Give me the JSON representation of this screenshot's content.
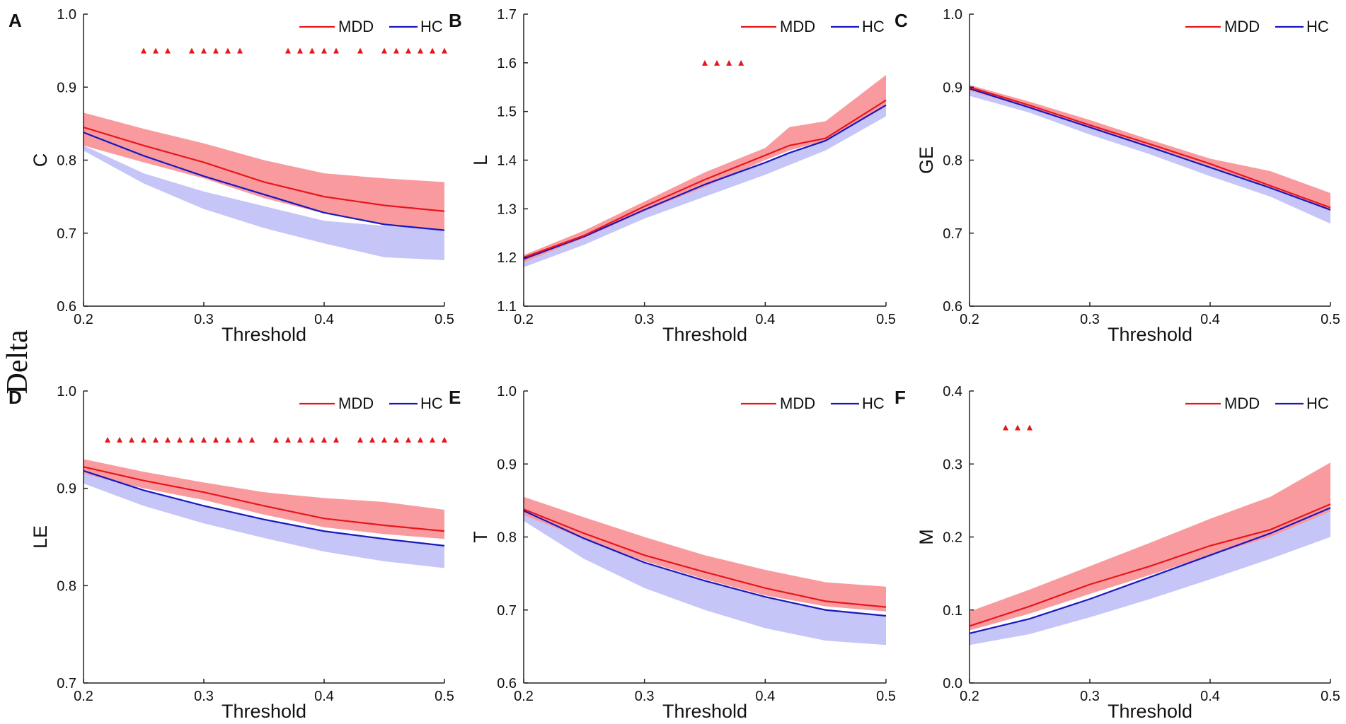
{
  "figure": {
    "side_label": "Delta",
    "colors": {
      "mdd": "#e8161c",
      "hc": "#1818c0",
      "mdd_band": "#f99b9e",
      "hc_band": "#c5c6f7",
      "axis": "#222222"
    }
  },
  "chart_data": [
    {
      "type": "line",
      "panel_letter": "A",
      "title": "",
      "xlabel": "Threshold",
      "ylabel": "C",
      "xlim": [
        0.2,
        0.5
      ],
      "ylim": [
        0.6,
        1.0
      ],
      "xticks": [
        0.2,
        0.3,
        0.4,
        0.5
      ],
      "yticks": [
        0.6,
        0.7,
        0.8,
        0.9,
        1.0
      ],
      "xtick_labels": [
        "0.2",
        "0.3",
        "0.4",
        "0.5"
      ],
      "ytick_labels": [
        "0.6",
        "0.7",
        "0.8",
        "0.9",
        "1.0"
      ],
      "legend": [
        "MDD",
        "HC"
      ],
      "legend_position": "top-right",
      "x": [
        0.2,
        0.25,
        0.3,
        0.35,
        0.4,
        0.45,
        0.5
      ],
      "series": [
        {
          "name": "MDD",
          "values": [
            0.845,
            0.82,
            0.797,
            0.77,
            0.75,
            0.738,
            0.73
          ],
          "band_upper": [
            0.865,
            0.843,
            0.823,
            0.8,
            0.782,
            0.775,
            0.77
          ],
          "band_lower": [
            0.82,
            0.797,
            0.775,
            0.748,
            0.727,
            0.712,
            0.705
          ]
        },
        {
          "name": "HC",
          "values": [
            0.838,
            0.806,
            0.778,
            0.753,
            0.728,
            0.712,
            0.704
          ],
          "band_upper": [
            0.82,
            0.782,
            0.757,
            0.737,
            0.717,
            0.71,
            0.705
          ],
          "band_lower": [
            0.813,
            0.768,
            0.733,
            0.707,
            0.686,
            0.667,
            0.663
          ]
        }
      ],
      "significance_y": 0.95,
      "significance_x": [
        0.25,
        0.26,
        0.27,
        0.29,
        0.3,
        0.31,
        0.32,
        0.33,
        0.37,
        0.38,
        0.39,
        0.4,
        0.41,
        0.43,
        0.45,
        0.46,
        0.47,
        0.48,
        0.49,
        0.5
      ]
    },
    {
      "type": "line",
      "panel_letter": "B",
      "title": "",
      "xlabel": "Threshold",
      "ylabel": "L",
      "xlim": [
        0.2,
        0.5
      ],
      "ylim": [
        1.1,
        1.7
      ],
      "xticks": [
        0.2,
        0.3,
        0.4,
        0.5
      ],
      "yticks": [
        1.1,
        1.2,
        1.3,
        1.4,
        1.5,
        1.6,
        1.7
      ],
      "xtick_labels": [
        "0.2",
        "0.3",
        "0.4",
        "0.5"
      ],
      "ytick_labels": [
        "1.1",
        "1.2",
        "1.3",
        "1.4",
        "1.5",
        "1.6",
        "1.7"
      ],
      "legend": [
        "MDD",
        "HC"
      ],
      "legend_position": "top-right",
      "x": [
        0.2,
        0.25,
        0.3,
        0.35,
        0.4,
        0.42,
        0.45,
        0.5
      ],
      "series": [
        {
          "name": "MDD",
          "values": [
            1.2,
            1.245,
            1.305,
            1.36,
            1.41,
            1.43,
            1.445,
            1.523
          ],
          "band_upper": [
            1.205,
            1.255,
            1.315,
            1.375,
            1.425,
            1.468,
            1.48,
            1.575
          ],
          "band_lower": [
            1.19,
            1.24,
            1.295,
            1.345,
            1.4,
            1.42,
            1.44,
            1.51
          ]
        },
        {
          "name": "HC",
          "values": [
            1.197,
            1.243,
            1.298,
            1.35,
            1.395,
            1.415,
            1.44,
            1.513
          ],
          "band_upper": [
            1.197,
            1.243,
            1.298,
            1.35,
            1.395,
            1.415,
            1.44,
            1.513
          ],
          "band_lower": [
            1.18,
            1.226,
            1.28,
            1.325,
            1.37,
            1.39,
            1.42,
            1.49
          ]
        }
      ],
      "significance_y": 1.6,
      "significance_x": [
        0.35,
        0.36,
        0.37,
        0.38
      ]
    },
    {
      "type": "line",
      "panel_letter": "C",
      "title": "",
      "xlabel": "Threshold",
      "ylabel": "GE",
      "xlim": [
        0.2,
        0.5
      ],
      "ylim": [
        0.6,
        1.0
      ],
      "xticks": [
        0.2,
        0.3,
        0.4,
        0.5
      ],
      "yticks": [
        0.6,
        0.7,
        0.8,
        0.9,
        1.0
      ],
      "xtick_labels": [
        "0.2",
        "0.3",
        "0.4",
        "0.5"
      ],
      "ytick_labels": [
        "0.6",
        "0.7",
        "0.8",
        "0.9",
        "1.0"
      ],
      "legend": [
        "MDD",
        "HC"
      ],
      "legend_position": "top-right",
      "x": [
        0.2,
        0.25,
        0.3,
        0.35,
        0.4,
        0.45,
        0.5
      ],
      "series": [
        {
          "name": "MDD",
          "values": [
            0.9,
            0.875,
            0.848,
            0.822,
            0.795,
            0.765,
            0.735
          ],
          "band_upper": [
            0.903,
            0.88,
            0.855,
            0.828,
            0.802,
            0.785,
            0.755
          ],
          "band_lower": [
            0.895,
            0.872,
            0.845,
            0.817,
            0.79,
            0.762,
            0.73
          ]
        },
        {
          "name": "HC",
          "values": [
            0.898,
            0.872,
            0.845,
            0.818,
            0.79,
            0.762,
            0.732
          ],
          "band_upper": [
            0.898,
            0.872,
            0.845,
            0.818,
            0.79,
            0.762,
            0.732
          ],
          "band_lower": [
            0.888,
            0.865,
            0.835,
            0.808,
            0.778,
            0.75,
            0.713
          ]
        }
      ],
      "significance_y": 0.95,
      "significance_x": []
    },
    {
      "type": "line",
      "panel_letter": "D",
      "title": "",
      "xlabel": "Threshold",
      "ylabel": "LE",
      "xlim": [
        0.2,
        0.5
      ],
      "ylim": [
        0.7,
        1.0
      ],
      "xticks": [
        0.2,
        0.3,
        0.4,
        0.5
      ],
      "yticks": [
        0.7,
        0.8,
        0.9,
        1.0
      ],
      "xtick_labels": [
        "0.2",
        "0.3",
        "0.4",
        "0.5"
      ],
      "ytick_labels": [
        "0.7",
        "0.8",
        "0.9",
        "1.0"
      ],
      "legend": [
        "MDD",
        "HC"
      ],
      "legend_position": "top-right",
      "x": [
        0.2,
        0.25,
        0.3,
        0.35,
        0.4,
        0.45,
        0.5
      ],
      "series": [
        {
          "name": "MDD",
          "values": [
            0.922,
            0.908,
            0.896,
            0.882,
            0.869,
            0.862,
            0.856
          ],
          "band_upper": [
            0.93,
            0.917,
            0.906,
            0.896,
            0.89,
            0.886,
            0.878
          ],
          "band_lower": [
            0.915,
            0.9,
            0.888,
            0.873,
            0.86,
            0.853,
            0.848
          ]
        },
        {
          "name": "HC",
          "values": [
            0.918,
            0.898,
            0.882,
            0.868,
            0.856,
            0.848,
            0.841
          ],
          "band_upper": [
            0.918,
            0.898,
            0.882,
            0.868,
            0.856,
            0.848,
            0.841
          ],
          "band_lower": [
            0.905,
            0.882,
            0.864,
            0.849,
            0.835,
            0.825,
            0.818
          ]
        }
      ],
      "significance_y": 0.95,
      "significance_x": [
        0.22,
        0.23,
        0.24,
        0.25,
        0.26,
        0.27,
        0.28,
        0.29,
        0.3,
        0.31,
        0.32,
        0.33,
        0.34,
        0.36,
        0.37,
        0.38,
        0.39,
        0.4,
        0.41,
        0.43,
        0.44,
        0.45,
        0.46,
        0.47,
        0.48,
        0.49,
        0.5
      ]
    },
    {
      "type": "line",
      "panel_letter": "E",
      "title": "",
      "xlabel": "Threshold",
      "ylabel": "T",
      "xlim": [
        0.2,
        0.5
      ],
      "ylim": [
        0.6,
        1.0
      ],
      "xticks": [
        0.2,
        0.3,
        0.4,
        0.5
      ],
      "yticks": [
        0.6,
        0.7,
        0.8,
        0.9,
        1.0
      ],
      "xtick_labels": [
        "0.2",
        "0.3",
        "0.4",
        "0.5"
      ],
      "ytick_labels": [
        "0.6",
        "0.7",
        "0.8",
        "0.9",
        "1.0"
      ],
      "legend": [
        "MDD",
        "HC"
      ],
      "legend_position": "top-right",
      "x": [
        0.2,
        0.25,
        0.3,
        0.35,
        0.4,
        0.45,
        0.5
      ],
      "series": [
        {
          "name": "MDD",
          "values": [
            0.838,
            0.805,
            0.775,
            0.752,
            0.73,
            0.712,
            0.704
          ],
          "band_upper": [
            0.855,
            0.827,
            0.8,
            0.775,
            0.755,
            0.738,
            0.732
          ],
          "band_lower": [
            0.83,
            0.797,
            0.767,
            0.742,
            0.72,
            0.705,
            0.698
          ]
        },
        {
          "name": "HC",
          "values": [
            0.836,
            0.798,
            0.765,
            0.74,
            0.718,
            0.7,
            0.692
          ],
          "band_upper": [
            0.836,
            0.798,
            0.765,
            0.74,
            0.718,
            0.7,
            0.692
          ],
          "band_lower": [
            0.822,
            0.77,
            0.73,
            0.7,
            0.675,
            0.658,
            0.652
          ]
        }
      ],
      "significance_y": 0.95,
      "significance_x": []
    },
    {
      "type": "line",
      "panel_letter": "F",
      "title": "",
      "xlabel": "Threshold",
      "ylabel": "M",
      "xlim": [
        0.2,
        0.5
      ],
      "ylim": [
        0.0,
        0.4
      ],
      "xticks": [
        0.2,
        0.3,
        0.4,
        0.5
      ],
      "yticks": [
        0.0,
        0.1,
        0.2,
        0.3,
        0.4
      ],
      "xtick_labels": [
        "0.2",
        "0.3",
        "0.4",
        "0.5"
      ],
      "ytick_labels": [
        "0.0",
        "0.1",
        "0.2",
        "0.3",
        "0.4"
      ],
      "legend": [
        "MDD",
        "HC"
      ],
      "legend_position": "top-right",
      "x": [
        0.2,
        0.25,
        0.3,
        0.35,
        0.4,
        0.45,
        0.5
      ],
      "series": [
        {
          "name": "MDD",
          "values": [
            0.078,
            0.105,
            0.135,
            0.16,
            0.188,
            0.21,
            0.245
          ],
          "band_upper": [
            0.098,
            0.128,
            0.16,
            0.192,
            0.225,
            0.255,
            0.302
          ],
          "band_lower": [
            0.072,
            0.095,
            0.122,
            0.148,
            0.175,
            0.2,
            0.235
          ]
        },
        {
          "name": "HC",
          "values": [
            0.068,
            0.088,
            0.115,
            0.145,
            0.175,
            0.205,
            0.24
          ],
          "band_upper": [
            0.068,
            0.088,
            0.115,
            0.145,
            0.175,
            0.205,
            0.24
          ],
          "band_lower": [
            0.052,
            0.067,
            0.09,
            0.115,
            0.142,
            0.17,
            0.2
          ]
        }
      ],
      "significance_y": 0.35,
      "significance_x": [
        0.23,
        0.24,
        0.25
      ]
    }
  ]
}
